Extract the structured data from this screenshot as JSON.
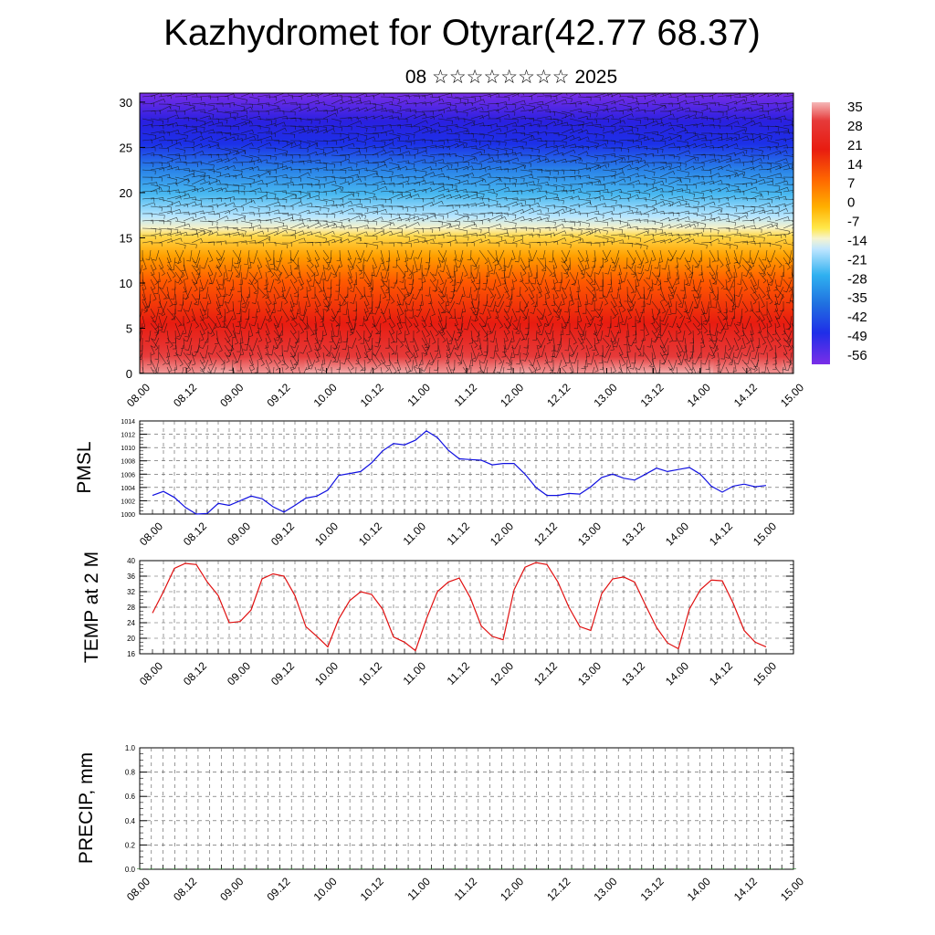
{
  "title": "Kazhydromet for Otyrar(42.77 68.37)",
  "date_text": "08 ☆☆☆☆☆☆☆☆ 2025",
  "time_labels": [
    "08.00",
    "08.12",
    "09.00",
    "09.12",
    "10.00",
    "10.12",
    "11.00",
    "11.12",
    "12.00",
    "12.12",
    "13.00",
    "13.12",
    "14.00",
    "14.12",
    "15.00"
  ],
  "colorbar": {
    "labels": [
      "35",
      "28",
      "21",
      "14",
      "7",
      "0",
      "-7",
      "-14",
      "-21",
      "-28",
      "-35",
      "-42",
      "-49",
      "-56"
    ],
    "colors": [
      "#f5b8b8",
      "#e62020",
      "#ff6a00",
      "#ffb000",
      "#ffe84a",
      "#bfe6ff",
      "#2fb0f0",
      "#2070e0",
      "#1f2ee8",
      "#7b2ee8"
    ]
  },
  "chart_data": [
    {
      "type": "heatmap",
      "name_hint": "vertical temperature cross-section with wind barbs",
      "ylim": [
        0,
        31
      ],
      "y_ticks": [
        "0",
        "5",
        "10",
        "15",
        "20",
        "25",
        "30"
      ],
      "x_ticks": [
        "08.00",
        "08.12",
        "09.00",
        "09.12",
        "10.00",
        "10.12",
        "11.00",
        "11.12",
        "12.00",
        "12.12",
        "13.00",
        "13.12",
        "14.00",
        "14.12",
        "15.00"
      ],
      "layers": [
        {
          "y": 0,
          "temperature": 35
        },
        {
          "y": 5,
          "temperature": 21
        },
        {
          "y": 10,
          "temperature": 14
        },
        {
          "y": 15,
          "temperature": -7
        },
        {
          "y": 20,
          "temperature": -28
        },
        {
          "y": 25,
          "temperature": -49
        },
        {
          "y": 30,
          "temperature": -56
        }
      ]
    },
    {
      "type": "line",
      "ylabel": "PMSL",
      "ylim": [
        1000,
        1014
      ],
      "y_ticks": [
        "1000",
        "1002",
        "1004",
        "1006",
        "1008",
        "1010",
        "1012",
        "1014"
      ],
      "x_ticks": [
        "08.00",
        "08.12",
        "09.00",
        "09.12",
        "10.00",
        "10.12",
        "11.00",
        "11.12",
        "12.00",
        "12.12",
        "13.00",
        "13.12",
        "14.00",
        "14.12",
        "15.00"
      ],
      "color": "#1010e0",
      "values": [
        1002.8,
        1003.4,
        1002.5,
        1001.0,
        1000.0,
        1000.1,
        1001.6,
        1001.3,
        1002.0,
        1002.7,
        1002.3,
        1001.1,
        1000.3,
        1001.3,
        1002.4,
        1002.7,
        1003.6,
        1005.8,
        1006.1,
        1006.4,
        1007.7,
        1009.5,
        1010.6,
        1010.4,
        1011.1,
        1012.5,
        1011.5,
        1009.6,
        1008.3,
        1008.2,
        1008.1,
        1007.4,
        1007.6,
        1007.6,
        1006.0,
        1004.0,
        1002.8,
        1002.8,
        1003.1,
        1003.0,
        1004.1,
        1005.5,
        1006.0,
        1005.4,
        1005.1,
        1006.0,
        1006.9,
        1006.4,
        1006.7,
        1007.0,
        1006.0,
        1004.2,
        1003.3,
        1004.2,
        1004.5,
        1004.1,
        1004.3
      ]
    },
    {
      "type": "line",
      "ylabel": "TEMP at 2 M",
      "ylim": [
        16,
        40
      ],
      "y_ticks": [
        "16",
        "20",
        "24",
        "28",
        "32",
        "36",
        "40"
      ],
      "x_ticks": [
        "08.00",
        "08.12",
        "09.00",
        "09.12",
        "10.00",
        "10.12",
        "11.00",
        "11.12",
        "12.00",
        "12.12",
        "13.00",
        "13.12",
        "14.00",
        "14.12",
        "15.00"
      ],
      "color": "#e01010",
      "values": [
        26.5,
        32.0,
        38.0,
        39.3,
        39.0,
        34.5,
        31.0,
        24.0,
        24.3,
        27.3,
        35.3,
        36.6,
        36.0,
        31.0,
        23.0,
        20.5,
        17.8,
        25.0,
        29.7,
        32.0,
        31.3,
        27.5,
        20.3,
        19.0,
        16.8,
        25.0,
        32.0,
        34.5,
        35.5,
        30.5,
        23.2,
        20.5,
        19.6,
        32.5,
        38.3,
        39.5,
        39.0,
        34.5,
        28.0,
        23.0,
        22.0,
        31.5,
        35.3,
        35.8,
        34.5,
        28.5,
        22.8,
        18.8,
        17.3,
        27.5,
        32.5,
        35.0,
        34.8,
        29.0,
        22.0,
        19.0,
        17.8
      ]
    },
    {
      "type": "bar",
      "ylabel": "PRECIP, mm",
      "ylim": [
        0,
        1
      ],
      "y_ticks": [
        "0.0",
        "0.2",
        "0.4",
        "0.6",
        "0.8",
        "1.0"
      ],
      "x_ticks": [
        "08.00",
        "08.12",
        "09.00",
        "09.12",
        "10.00",
        "10.12",
        "11.00",
        "11.12",
        "12.00",
        "12.12",
        "13.00",
        "13.12",
        "14.00",
        "14.12",
        "15.00"
      ],
      "values": [
        0,
        0,
        0,
        0,
        0,
        0,
        0,
        0,
        0,
        0,
        0,
        0,
        0,
        0,
        0,
        0,
        0,
        0,
        0,
        0,
        0,
        0,
        0,
        0,
        0,
        0,
        0,
        0,
        0,
        0,
        0,
        0,
        0,
        0,
        0,
        0,
        0,
        0,
        0,
        0,
        0,
        0,
        0,
        0,
        0,
        0,
        0,
        0,
        0,
        0,
        0,
        0,
        0,
        0,
        0,
        0,
        0
      ]
    }
  ]
}
